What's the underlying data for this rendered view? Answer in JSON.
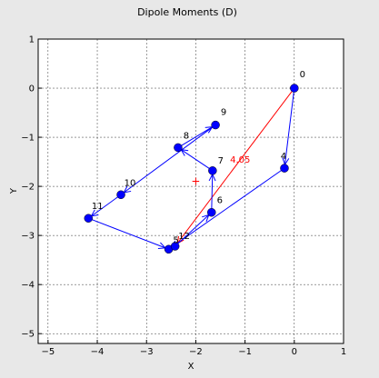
{
  "chart_data": {
    "type": "line",
    "title": "Dipole Moments (D)",
    "xlabel": "X",
    "ylabel": "Y",
    "xlim": [
      -5.2,
      1.0
    ],
    "ylim": [
      -5.2,
      1.0
    ],
    "grid": true,
    "xticks": [
      -5,
      -4,
      -3,
      -2,
      -1,
      0,
      1
    ],
    "yticks": [
      -5,
      -4,
      -3,
      -2,
      -1,
      0,
      1
    ],
    "points": [
      {
        "label": "0",
        "x": 0.0,
        "y": 0.0
      },
      {
        "label": "4",
        "x": -0.2,
        "y": -1.63
      },
      {
        "label": "5",
        "x": -2.55,
        "y": -3.28
      },
      {
        "label": "12",
        "x": -2.42,
        "y": -3.22
      },
      {
        "label": "6",
        "x": -1.68,
        "y": -2.53
      },
      {
        "label": "7",
        "x": -1.66,
        "y": -1.68
      },
      {
        "label": "8",
        "x": -2.36,
        "y": -1.21
      },
      {
        "label": "9",
        "x": -1.6,
        "y": -0.75
      },
      {
        "label": "10",
        "x": -3.52,
        "y": -2.17
      },
      {
        "label": "11",
        "x": -4.18,
        "y": -2.65
      }
    ],
    "path_order": [
      "0",
      "4",
      "5",
      "12",
      "6",
      "7",
      "8",
      "9",
      "10",
      "11",
      "5"
    ],
    "net_vector": {
      "from": [
        0.0,
        0.0
      ],
      "to": [
        -2.42,
        -3.22
      ],
      "label": "4.05",
      "color": "#ff0000"
    },
    "center_marker": {
      "x": -2.0,
      "y": -1.9,
      "symbol": "+",
      "color": "#ff0000"
    },
    "series_color": "#0000ff"
  }
}
